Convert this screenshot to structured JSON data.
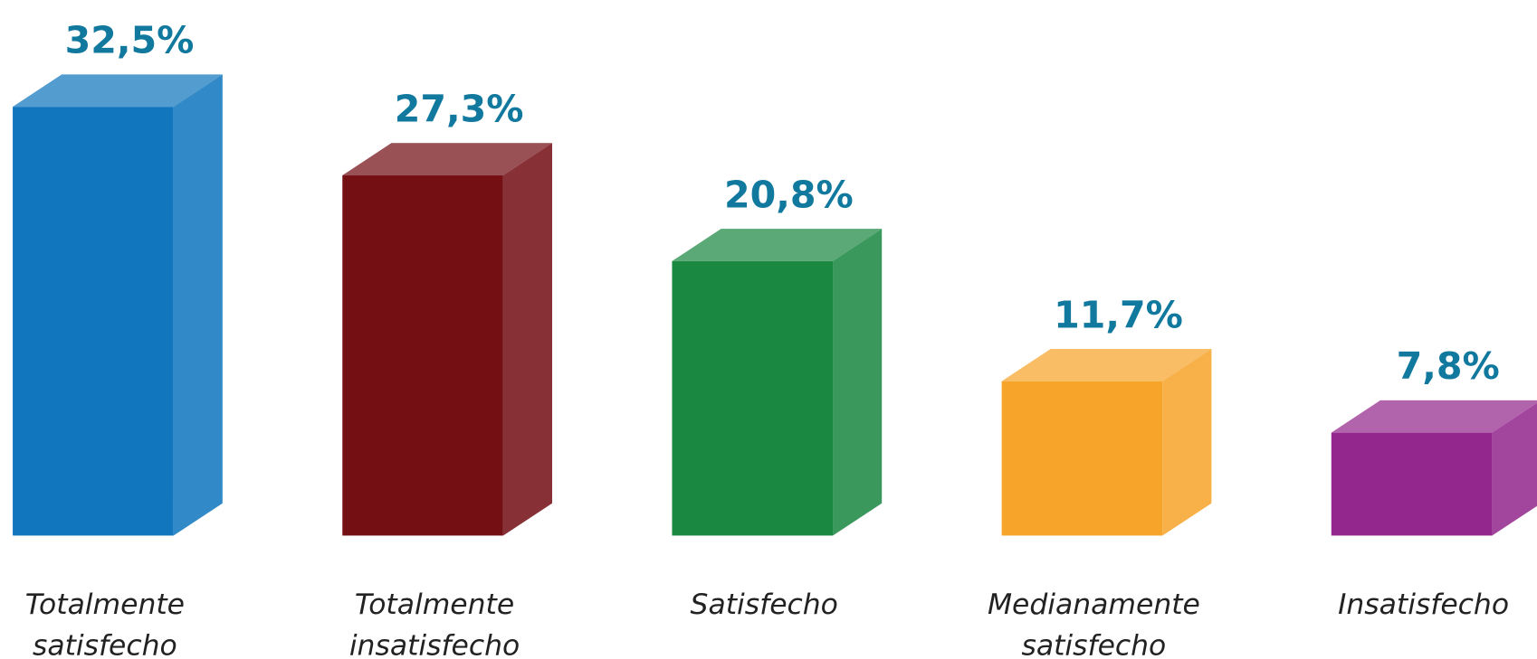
{
  "chart_data": {
    "type": "bar3d",
    "categories": [
      "Totalmente satisfecho",
      "Totalmente insatisfecho",
      "Satisfecho",
      "Medianamente satisfecho",
      "Insatisfecho"
    ],
    "values": [
      32.5,
      27.3,
      20.8,
      11.7,
      7.8
    ],
    "value_labels": [
      "32,5%",
      "27,3%",
      "20,8%",
      "11,7%",
      "7,8%"
    ],
    "colors": [
      "#1176be",
      "#740f14",
      "#1b8842",
      "#f7a42b",
      "#93278d"
    ]
  }
}
